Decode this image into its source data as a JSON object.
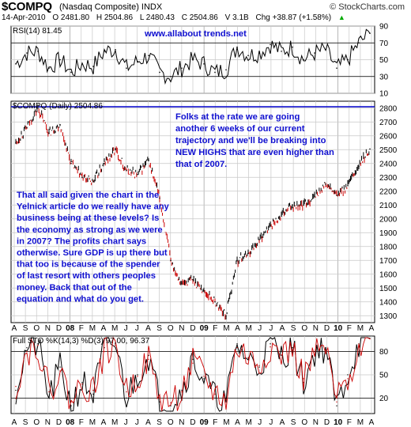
{
  "header": {
    "symbol": "$COMPQ",
    "name": "(Nasdaq Composite) INDX",
    "brand": "© StockCharts.com",
    "date": "14-Apr-2010",
    "open": "O 2481.80",
    "high": "H 2504.86",
    "low": "L 2480.43",
    "close": "C 2504.86",
    "volume": "V 3.1B",
    "change": "Chg +38.87 (+1.58%)",
    "change_arrow": "▲"
  },
  "colors": {
    "price_up": "#000000",
    "price_down": "#cc0000",
    "annotation": "#1010d0",
    "hline": "#0000cc",
    "grid": "#c8c8c8"
  },
  "chart_data": [
    {
      "type": "line",
      "panel": "RSI",
      "title": "RSI(14) 81.45",
      "ylim": [
        10,
        90
      ],
      "yticks": [
        10,
        30,
        50,
        70,
        90
      ],
      "reference_lines": [
        30,
        70
      ],
      "annotation": "www.allabout trends.net",
      "x": [
        "2007-08",
        "2007-09",
        "2007-10",
        "2007-11",
        "2007-12",
        "2008-01",
        "2008-02",
        "2008-03",
        "2008-04",
        "2008-05",
        "2008-06",
        "2008-07",
        "2008-08",
        "2008-09",
        "2008-10",
        "2008-11",
        "2008-12",
        "2009-01",
        "2009-02",
        "2009-03",
        "2009-04",
        "2009-05",
        "2009-06",
        "2009-07",
        "2009-08",
        "2009-09",
        "2009-10",
        "2009-11",
        "2009-12",
        "2010-01",
        "2010-02",
        "2010-03",
        "2010-04"
      ],
      "values": [
        45,
        58,
        60,
        40,
        50,
        35,
        45,
        42,
        60,
        62,
        40,
        48,
        55,
        35,
        30,
        40,
        50,
        45,
        35,
        38,
        65,
        55,
        58,
        68,
        60,
        65,
        50,
        58,
        62,
        40,
        50,
        70,
        81.45
      ]
    },
    {
      "type": "line",
      "panel": "Price",
      "title": "$COMPQ (Daily) 2504.86",
      "ylim": [
        1250,
        2850
      ],
      "yticks": [
        1300,
        1400,
        1500,
        1600,
        1700,
        1800,
        1900,
        2000,
        2100,
        2200,
        2300,
        2400,
        2500,
        2600,
        2700,
        2800
      ],
      "reference_lines": [
        2810
      ],
      "x": [
        "2007-08",
        "2007-09",
        "2007-10",
        "2007-11",
        "2007-12",
        "2008-01",
        "2008-02",
        "2008-03",
        "2008-04",
        "2008-05",
        "2008-06",
        "2008-07",
        "2008-08",
        "2008-09",
        "2008-10",
        "2008-11",
        "2008-12",
        "2009-01",
        "2009-02",
        "2009-03",
        "2009-04",
        "2009-05",
        "2009-06",
        "2009-07",
        "2009-08",
        "2009-09",
        "2009-10",
        "2009-11",
        "2009-12",
        "2010-01",
        "2010-02",
        "2010-03",
        "2010-04"
      ],
      "values": [
        2550,
        2660,
        2800,
        2620,
        2680,
        2400,
        2300,
        2270,
        2400,
        2500,
        2350,
        2320,
        2420,
        2150,
        1700,
        1530,
        1560,
        1480,
        1400,
        1300,
        1700,
        1750,
        1850,
        1950,
        2020,
        2100,
        2100,
        2160,
        2250,
        2170,
        2240,
        2380,
        2504.86
      ],
      "annotations": [
        "Folks at the rate we are going another 6 weeks of our current trajectory and we'll be breaking into NEW HIGHS that are even higher than that of 2007.",
        "That all said given the chart in the Yelnick article do we really have any business being at these levels? Is the economy as strong as we were in 2007? The profits chart says otherwise. Sure GDP is up there but that too is because of the spender of last resort with others peoples money. Back that out of the equation and what do you get."
      ]
    },
    {
      "type": "line",
      "panel": "Stochastics",
      "title": "Full STO %K(14,3) %D(3) 97.00, 96.37",
      "ylim": [
        0,
        100
      ],
      "yticks": [
        20,
        50,
        80
      ],
      "reference_lines": [
        20,
        80
      ],
      "series": [
        {
          "name": "%K(14,3)",
          "values": [
            30,
            85,
            90,
            20,
            60,
            10,
            40,
            25,
            85,
            90,
            20,
            50,
            75,
            15,
            10,
            30,
            70,
            45,
            20,
            15,
            90,
            70,
            60,
            90,
            75,
            85,
            40,
            80,
            85,
            10,
            50,
            90,
            97.0
          ]
        },
        {
          "name": "%D(3)",
          "values": [
            35,
            80,
            88,
            28,
            55,
            15,
            38,
            30,
            80,
            88,
            28,
            48,
            70,
            20,
            14,
            28,
            65,
            48,
            25,
            18,
            85,
            72,
            62,
            86,
            76,
            82,
            45,
            76,
            82,
            15,
            45,
            86,
            96.37
          ]
        }
      ]
    }
  ],
  "x_axis": {
    "month_labels": [
      "A",
      "S",
      "O",
      "N",
      "D",
      "08",
      "F",
      "M",
      "A",
      "M",
      "J",
      "J",
      "A",
      "S",
      "O",
      "N",
      "D",
      "09",
      "F",
      "M",
      "A",
      "M",
      "J",
      "J",
      "A",
      "S",
      "O",
      "N",
      "D",
      "10",
      "F",
      "M",
      "A"
    ]
  },
  "annotation_lines": {
    "top_right": [
      "Folks at the rate we are going",
      "another 6 weeks of our current",
      "trajectory and we'll be breaking into",
      "NEW HIGHS that are even higher than",
      "that of 2007."
    ],
    "left": [
      "That all said given the chart in the",
      "Yelnick article do we really have any",
      "business being at these levels? Is",
      "the economy as strong as we were",
      "in 2007? The profits chart says",
      "otherwise. Sure GDP is up there but",
      "that too is because of the spender",
      "of last resort with others peoples",
      "money. Back that out of the",
      "equation and what do you get."
    ]
  }
}
